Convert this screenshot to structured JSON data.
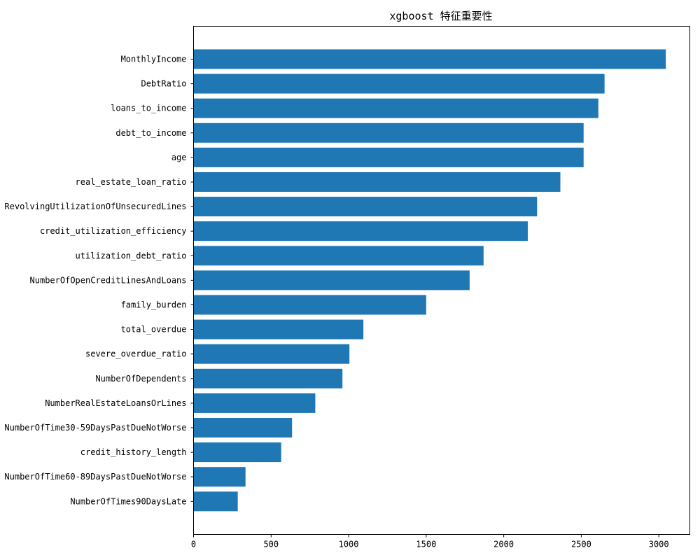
{
  "chart_data": {
    "type": "bar",
    "orientation": "horizontal",
    "title": "xgboost 特征重要性",
    "xlabel": "",
    "ylabel": "",
    "xlim": [
      0,
      3200
    ],
    "xticks": [
      0,
      500,
      1000,
      1500,
      2000,
      2500,
      3000
    ],
    "xtick_labels": [
      "0",
      "500",
      "1000",
      "1500",
      "2000",
      "2500",
      "3000"
    ],
    "grid": false,
    "legend": "none",
    "bar_color": "#1f77b4",
    "categories": [
      "MonthlyIncome",
      "DebtRatio",
      "loans_to_income",
      "debt_to_income",
      "age",
      "real_estate_loan_ratio",
      "RevolvingUtilizationOfUnsecuredLines",
      "credit_utilization_efficiency",
      "utilization_debt_ratio",
      "NumberOfOpenCreditLinesAndLoans",
      "family_burden",
      "total_overdue",
      "severe_overdue_ratio",
      "NumberOfDependents",
      "NumberRealEstateLoansOrLines",
      "NumberOfTime30-59DaysPastDueNotWorse",
      "credit_history_length",
      "NumberOfTime60-89DaysPastDueNotWorse",
      "NumberOfTimes90DaysLate"
    ],
    "values": [
      3045,
      2650,
      2610,
      2515,
      2515,
      2365,
      2215,
      2155,
      1870,
      1780,
      1500,
      1095,
      1005,
      960,
      785,
      635,
      565,
      335,
      285
    ]
  }
}
